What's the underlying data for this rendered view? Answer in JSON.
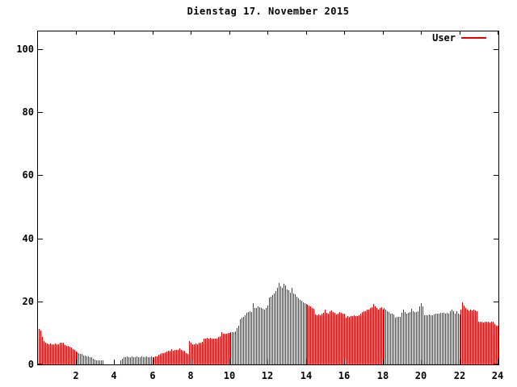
{
  "title": "Dienstag 17. November 2015",
  "legend": {
    "label": "User"
  },
  "colors": {
    "bar": "#e60000",
    "axis": "#000000",
    "background": "#ffffff"
  },
  "chart_data": {
    "type": "bar",
    "title": "Dienstag 17. November 2015",
    "xlabel": "",
    "ylabel": "",
    "xlim": [
      0,
      24
    ],
    "ylim": [
      0,
      105.6
    ],
    "xticks": [
      2,
      4,
      6,
      8,
      10,
      12,
      14,
      16,
      18,
      20,
      22,
      24
    ],
    "yticks": [
      0,
      20,
      40,
      60,
      80,
      100
    ],
    "grid": false,
    "legend_position": "top-right",
    "x_unit": "hour-of-day",
    "sample_interval_hours": 0.0833,
    "series": [
      {
        "name": "User",
        "color": "#e60000",
        "values": [
          11.2,
          10.7,
          8.6,
          7.3,
          6.8,
          6.6,
          6.5,
          6.6,
          6.4,
          6.5,
          6.6,
          6.5,
          6.5,
          6.9,
          7.0,
          6.8,
          6.2,
          6.0,
          5.9,
          5.6,
          5.3,
          4.9,
          4.6,
          4.2,
          3.9,
          3.6,
          3.4,
          3.2,
          2.9,
          2.7,
          2.6,
          2.5,
          2.3,
          2.2,
          1.8,
          1.6,
          1.4,
          1.3,
          1.3,
          1.2,
          1.2,
          0,
          0,
          0,
          0,
          0,
          0,
          0,
          0,
          0,
          0,
          1.2,
          1.9,
          2.3,
          2.4,
          2.5,
          2.3,
          2.4,
          2.5,
          2.4,
          2.3,
          2.5,
          2.4,
          2.3,
          2.5,
          2.4,
          2.4,
          2.5,
          2.3,
          2.4,
          2.5,
          2.4,
          2.4,
          2.5,
          2.6,
          3.0,
          3.3,
          3.5,
          3.6,
          3.9,
          4.2,
          4.3,
          4.4,
          4.9,
          4.4,
          4.5,
          4.6,
          4.5,
          5.2,
          4.6,
          4.4,
          4.3,
          3.6,
          3.2,
          7.3,
          7.0,
          6.5,
          6.3,
          6.6,
          6.4,
          6.8,
          7.0,
          7.1,
          8.2,
          8.3,
          8.4,
          8.3,
          8.5,
          8.2,
          8.1,
          8.3,
          8.2,
          8.8,
          8.9,
          10.1,
          9.7,
          9.6,
          9.8,
          9.9,
          10.0,
          10.1,
          10.2,
          10.3,
          10.4,
          11.6,
          12.2,
          14.3,
          14.8,
          15.1,
          15.6,
          16.3,
          16.6,
          16.8,
          16.7,
          19.4,
          17.8,
          18.0,
          18.3,
          18.1,
          17.9,
          17.6,
          17.4,
          17.9,
          18.6,
          21.1,
          21.5,
          22.0,
          22.6,
          23.3,
          24.4,
          25.7,
          24.9,
          24.3,
          25.5,
          25.0,
          23.8,
          23.5,
          22.8,
          24.3,
          22.6,
          22.2,
          21.6,
          21.0,
          20.5,
          20.1,
          19.8,
          19.5,
          19.2,
          18.9,
          18.6,
          18.3,
          18.0,
          17.7,
          15.9,
          15.6,
          15.8,
          15.7,
          16.0,
          16.3,
          17.3,
          16.4,
          16.2,
          16.8,
          17.2,
          16.6,
          16.4,
          15.9,
          16.1,
          16.5,
          16.3,
          16.2,
          16.0,
          14.9,
          15.3,
          15.2,
          15.4,
          15.3,
          15.5,
          15.4,
          15.3,
          15.6,
          16.1,
          16.6,
          16.9,
          17.0,
          17.5,
          17.3,
          17.8,
          18.1,
          19.3,
          18.3,
          18.0,
          17.5,
          17.8,
          18.2,
          17.4,
          17.9,
          17.3,
          16.9,
          16.6,
          16.2,
          16.0,
          15.8,
          14.9,
          15.0,
          15.1,
          15.2,
          16.3,
          17.4,
          16.6,
          16.2,
          16.4,
          16.7,
          17.7,
          16.9,
          16.6,
          16.5,
          17.0,
          18.4,
          19.4,
          18.4,
          15.7,
          15.5,
          15.6,
          15.8,
          15.6,
          15.7,
          15.9,
          16.0,
          16.2,
          16.1,
          16.3,
          16.3,
          16.4,
          16.2,
          16.3,
          16.2,
          16.9,
          17.4,
          16.8,
          16.2,
          16.9,
          16.1,
          15.9,
          17.3,
          19.7,
          18.6,
          17.8,
          17.3,
          17.1,
          17.5,
          17.2,
          17.3,
          17.1,
          17.0,
          13.6,
          13.5,
          13.6,
          13.4,
          13.5,
          13.6,
          13.5,
          13.4,
          13.5,
          13.6,
          12.8,
          12.4,
          12.2
        ]
      }
    ]
  }
}
